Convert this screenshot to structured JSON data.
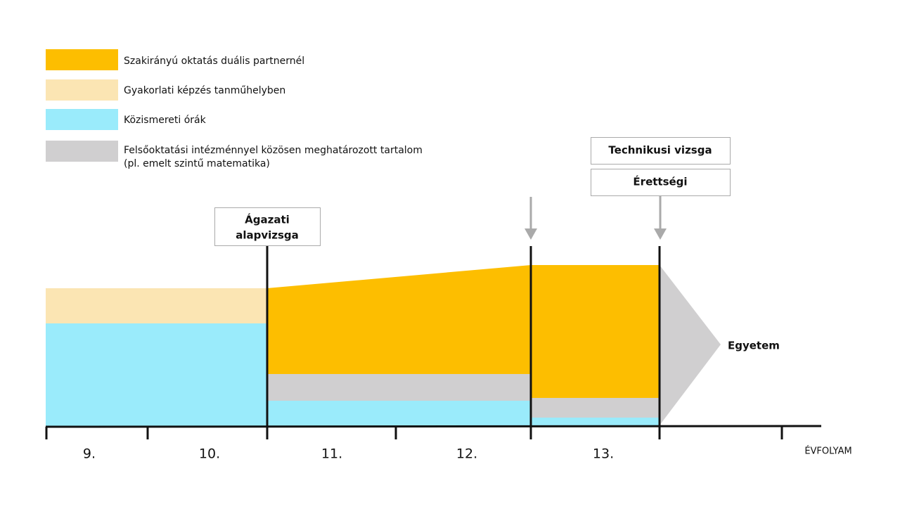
{
  "legend": [
    {
      "lines": [
        "Szakirányú oktatás duális partnernél"
      ]
    },
    {
      "lines": [
        "Gyakorlati képzés tanműhelyben"
      ]
    },
    {
      "lines": [
        "Közismereti órák"
      ]
    },
    {
      "lines": [
        "Felsőoktatási intézménnyel közösen meghatározott tartalom",
        "(pl. emelt szintű matematika)"
      ]
    }
  ],
  "milestones": [
    {
      "lines": [
        "Ágazati",
        "alapvizsga"
      ]
    },
    {
      "lines": [
        "Technikusi vizsga"
      ]
    },
    {
      "lines": [
        "Érettségi"
      ]
    }
  ],
  "destination": "Egyetem",
  "years": [
    "9.",
    "10.",
    "11.",
    "12.",
    "13."
  ],
  "axis_label": "ÉVFOLYAM"
}
